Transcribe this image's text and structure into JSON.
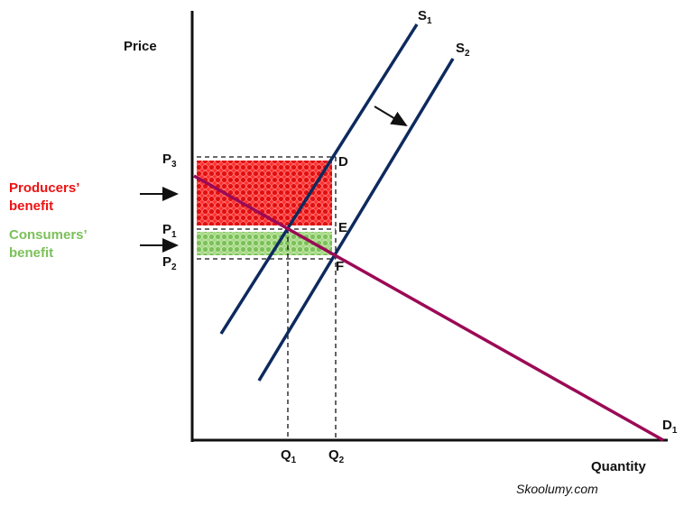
{
  "axes": {
    "y_label": "Price",
    "x_label": "Quantity"
  },
  "curves": {
    "s1": {
      "text": "S",
      "sub": "1"
    },
    "s2": {
      "text": "S",
      "sub": "2"
    },
    "d1": {
      "text": "D",
      "sub": "1"
    }
  },
  "prices": {
    "p3": {
      "text": "P",
      "sub": "3"
    },
    "p1": {
      "text": "P",
      "sub": "1"
    },
    "p2": {
      "text": "P",
      "sub": "2"
    }
  },
  "quantities": {
    "q1": {
      "text": "Q",
      "sub": "1"
    },
    "q2": {
      "text": "Q",
      "sub": "2"
    }
  },
  "points": {
    "d": "D",
    "e": "E",
    "f": "F"
  },
  "legend": {
    "producers": [
      "Producers’",
      "benefit"
    ],
    "consumers": [
      "Consumers’",
      "benefit"
    ]
  },
  "footer": "Skoolumy.com"
}
